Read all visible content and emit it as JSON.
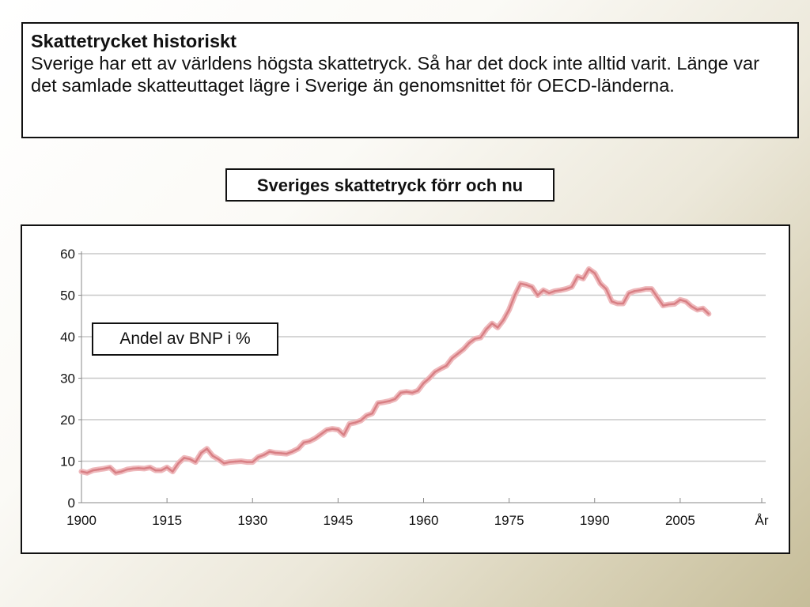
{
  "info_box": {
    "heading": "Skattetrycket historiskt",
    "body": "Sverige har ett av världens högsta skattetryck. Så har det dock inte alltid varit. Länge var det samlade skatteuttaget lägre i Sverige än genomsnittet för OECD-länderna."
  },
  "chart_data": {
    "type": "line",
    "title": "Sveriges skattetryck förr och nu",
    "xlabel": "År",
    "ylabel": "",
    "ylim": [
      0,
      60
    ],
    "xlim": [
      1900,
      2020
    ],
    "grid": true,
    "legend_placement": "left",
    "y_ticks": [
      0,
      10,
      20,
      30,
      40,
      50,
      60
    ],
    "x_ticks": [
      "1900",
      "1915",
      "1930",
      "1945",
      "1960",
      "1975",
      "1990",
      "2005",
      "År"
    ],
    "line_color": "#d87f84",
    "series": [
      {
        "name": "Andel av BNP i %",
        "x": [
          1900,
          1901,
          1902,
          1903,
          1904,
          1905,
          1906,
          1907,
          1908,
          1909,
          1910,
          1911,
          1912,
          1913,
          1914,
          1915,
          1916,
          1917,
          1918,
          1919,
          1920,
          1921,
          1922,
          1923,
          1924,
          1925,
          1926,
          1927,
          1928,
          1929,
          1930,
          1931,
          1932,
          1933,
          1934,
          1935,
          1936,
          1937,
          1938,
          1939,
          1940,
          1941,
          1942,
          1943,
          1944,
          1945,
          1946,
          1947,
          1948,
          1949,
          1950,
          1951,
          1952,
          1953,
          1954,
          1955,
          1956,
          1957,
          1958,
          1959,
          1960,
          1961,
          1962,
          1963,
          1964,
          1965,
          1966,
          1967,
          1968,
          1969,
          1970,
          1971,
          1972,
          1973,
          1974,
          1975,
          1976,
          1977,
          1978,
          1979,
          1980,
          1981,
          1982,
          1983,
          1984,
          1985,
          1986,
          1987,
          1988,
          1989,
          1990,
          1991,
          1992,
          1993,
          1994,
          1995,
          1996,
          1997,
          1998,
          1999,
          2000,
          2001,
          2002,
          2003,
          2004,
          2005,
          2006,
          2007,
          2008,
          2009,
          2010
        ],
        "values": [
          7.5,
          7.2,
          7.8,
          8.0,
          8.2,
          8.5,
          7.2,
          7.5,
          8.0,
          8.2,
          8.3,
          8.2,
          8.5,
          7.8,
          7.8,
          8.5,
          7.5,
          9.5,
          10.8,
          10.5,
          9.8,
          12.0,
          13.0,
          11.3,
          10.5,
          9.5,
          9.8,
          9.9,
          10.0,
          9.8,
          9.8,
          11.0,
          11.5,
          12.3,
          12.0,
          11.9,
          11.8,
          12.3,
          13.0,
          14.5,
          14.8,
          15.5,
          16.5,
          17.5,
          17.8,
          17.6,
          16.3,
          19.0,
          19.3,
          19.8,
          21.0,
          21.5,
          24.0,
          24.2,
          24.5,
          25.0,
          26.5,
          26.7,
          26.5,
          27.0,
          28.8,
          30.0,
          31.5,
          32.3,
          33.0,
          34.8,
          35.9,
          37.0,
          38.5,
          39.5,
          39.8,
          41.8,
          43.2,
          42.2,
          44.0,
          46.5,
          50.0,
          52.8,
          52.5,
          52.0,
          50.0,
          51.2,
          50.5,
          51.0,
          51.2,
          51.5,
          52.0,
          54.5,
          54.0,
          56.3,
          55.3,
          52.8,
          51.5,
          48.5,
          48.0,
          48.0,
          50.5,
          51.0,
          51.2,
          51.5,
          51.5,
          49.5,
          47.5,
          47.8,
          47.9,
          48.9,
          48.5,
          47.3,
          46.5,
          46.8,
          45.5
        ]
      }
    ]
  }
}
